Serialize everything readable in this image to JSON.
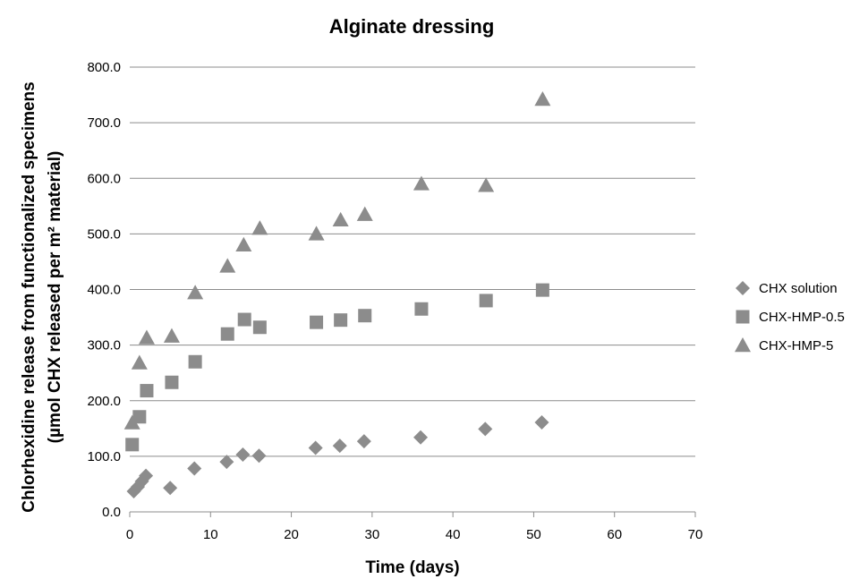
{
  "chart_data": {
    "type": "scatter",
    "title": "Alginate dressing",
    "xlabel": "Time (days)",
    "ylabel_line1": "Chlorhexidine release from functionalized specimens",
    "ylabel_line2": "(µmol CHX released per m² material)",
    "xlim": [
      0,
      70
    ],
    "ylim": [
      0,
      800
    ],
    "x_ticks": [
      0,
      10,
      20,
      30,
      40,
      50,
      60,
      70
    ],
    "y_ticks": [
      0,
      100,
      200,
      300,
      400,
      500,
      600,
      700,
      800
    ],
    "y_tick_labels": [
      "0.0",
      "100.0",
      "200.0",
      "300.0",
      "400.0",
      "500.0",
      "600.0",
      "700.0",
      "800.0"
    ],
    "grid": "horizontal",
    "legend_position": "right",
    "series": [
      {
        "name": "CHX solution",
        "marker": "diamond",
        "color": "#8c8c8c",
        "points": [
          [
            0.5,
            37
          ],
          [
            1,
            45
          ],
          [
            1.5,
            55
          ],
          [
            2,
            65
          ],
          [
            5,
            43
          ],
          [
            8,
            78
          ],
          [
            12,
            90
          ],
          [
            14,
            103
          ],
          [
            16,
            101
          ],
          [
            23,
            115
          ],
          [
            26,
            119
          ],
          [
            29,
            127
          ],
          [
            36,
            134
          ],
          [
            44,
            149
          ],
          [
            51,
            161
          ]
        ]
      },
      {
        "name": "CHX-HMP-0.5",
        "marker": "square",
        "color": "#8c8c8c",
        "points": [
          [
            0.3,
            121
          ],
          [
            1.2,
            171
          ],
          [
            2.1,
            218
          ],
          [
            5.2,
            233
          ],
          [
            8.1,
            270
          ],
          [
            12.1,
            320
          ],
          [
            14.2,
            346
          ],
          [
            16.1,
            332
          ],
          [
            23.1,
            341
          ],
          [
            26.1,
            345
          ],
          [
            29.1,
            353
          ],
          [
            36.1,
            365
          ],
          [
            44.1,
            380
          ],
          [
            51.1,
            399
          ]
        ]
      },
      {
        "name": "CHX-HMP-5",
        "marker": "triangle",
        "color": "#8c8c8c",
        "points": [
          [
            0.3,
            160
          ],
          [
            1.2,
            268
          ],
          [
            2.1,
            313
          ],
          [
            5.2,
            316
          ],
          [
            8.1,
            394
          ],
          [
            12.1,
            442
          ],
          [
            14.1,
            480
          ],
          [
            16.1,
            510
          ],
          [
            23.1,
            500
          ],
          [
            26.1,
            525
          ],
          [
            29.1,
            535
          ],
          [
            36.1,
            590
          ],
          [
            44.1,
            587
          ],
          [
            51.1,
            742
          ]
        ]
      }
    ]
  }
}
